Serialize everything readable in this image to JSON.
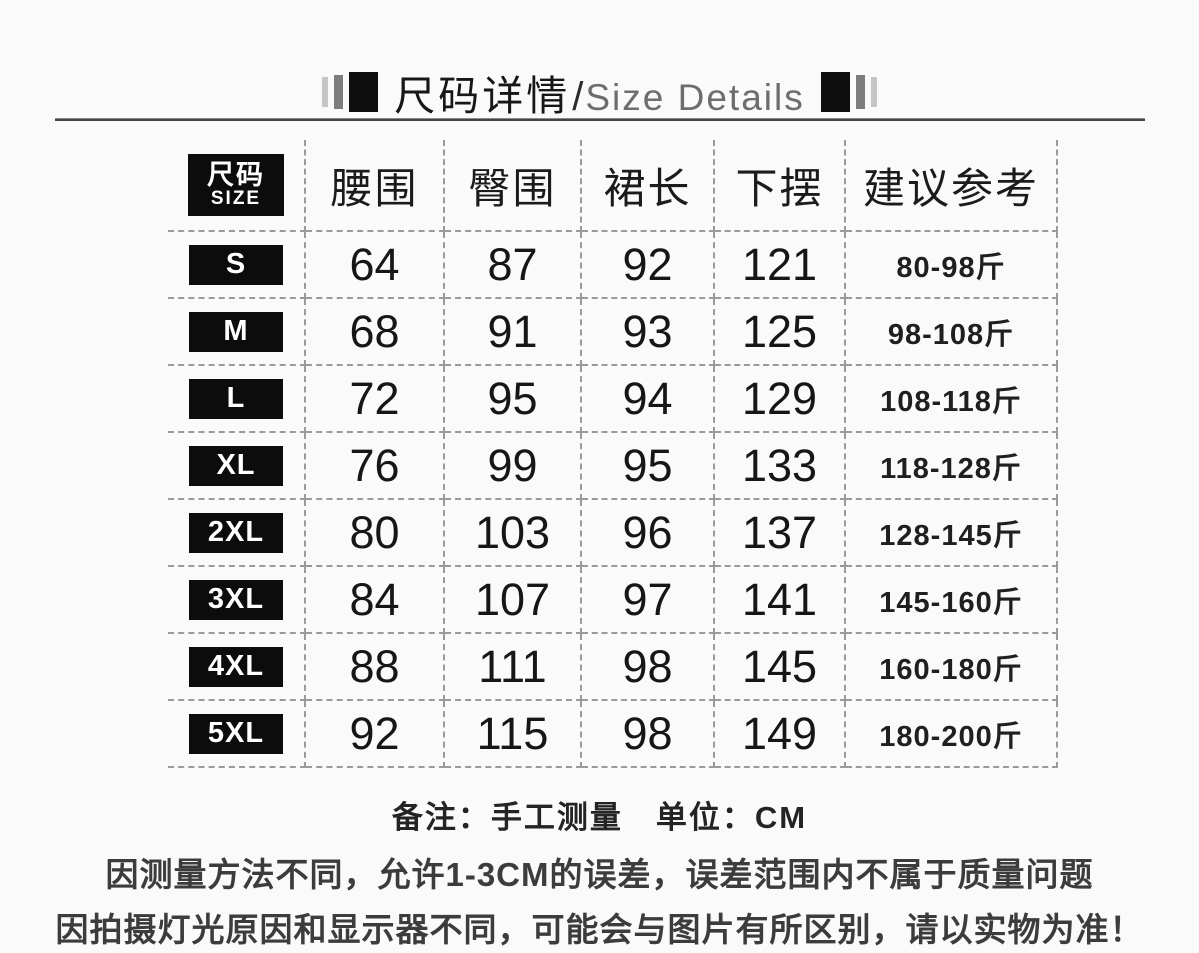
{
  "title": {
    "cn": "尺码详情",
    "sep": "/",
    "en": "Size Details"
  },
  "table": {
    "size_col": {
      "line1": "尺码",
      "line2": "SIZE"
    },
    "columns": [
      "腰围",
      "臀围",
      "裙长",
      "下摆",
      "建议参考"
    ],
    "rows": [
      {
        "size": "S",
        "waist": "64",
        "hip": "87",
        "skirt_length": "92",
        "hem": "121",
        "weight": "80-98斤"
      },
      {
        "size": "M",
        "waist": "68",
        "hip": "91",
        "skirt_length": "93",
        "hem": "125",
        "weight": "98-108斤"
      },
      {
        "size": "L",
        "waist": "72",
        "hip": "95",
        "skirt_length": "94",
        "hem": "129",
        "weight": "108-118斤"
      },
      {
        "size": "XL",
        "waist": "76",
        "hip": "99",
        "skirt_length": "95",
        "hem": "133",
        "weight": "118-128斤"
      },
      {
        "size": "2XL",
        "waist": "80",
        "hip": "103",
        "skirt_length": "96",
        "hem": "137",
        "weight": "128-145斤"
      },
      {
        "size": "3XL",
        "waist": "84",
        "hip": "107",
        "skirt_length": "97",
        "hem": "141",
        "weight": "145-160斤"
      },
      {
        "size": "4XL",
        "waist": "88",
        "hip": "111",
        "skirt_length": "98",
        "hem": "145",
        "weight": "160-180斤"
      },
      {
        "size": "5XL",
        "waist": "92",
        "hip": "115",
        "skirt_length": "98",
        "hem": "149",
        "weight": "180-200斤"
      }
    ]
  },
  "notes": {
    "remark": "备注：手工测量　单位：CM",
    "line1": "因测量方法不同，允许1-3CM的误差，误差范围内不属于质量问题",
    "line2": "因拍摄灯光原因和显示器不同，可能会与图片有所区别，请以实物为准！"
  },
  "colors": {
    "badge_bg": "#0c0c0c",
    "grid_line": "#9a9a9a",
    "ink": "#161616",
    "title_en": "#6d6d6d",
    "page_bg": "#fafafa"
  }
}
